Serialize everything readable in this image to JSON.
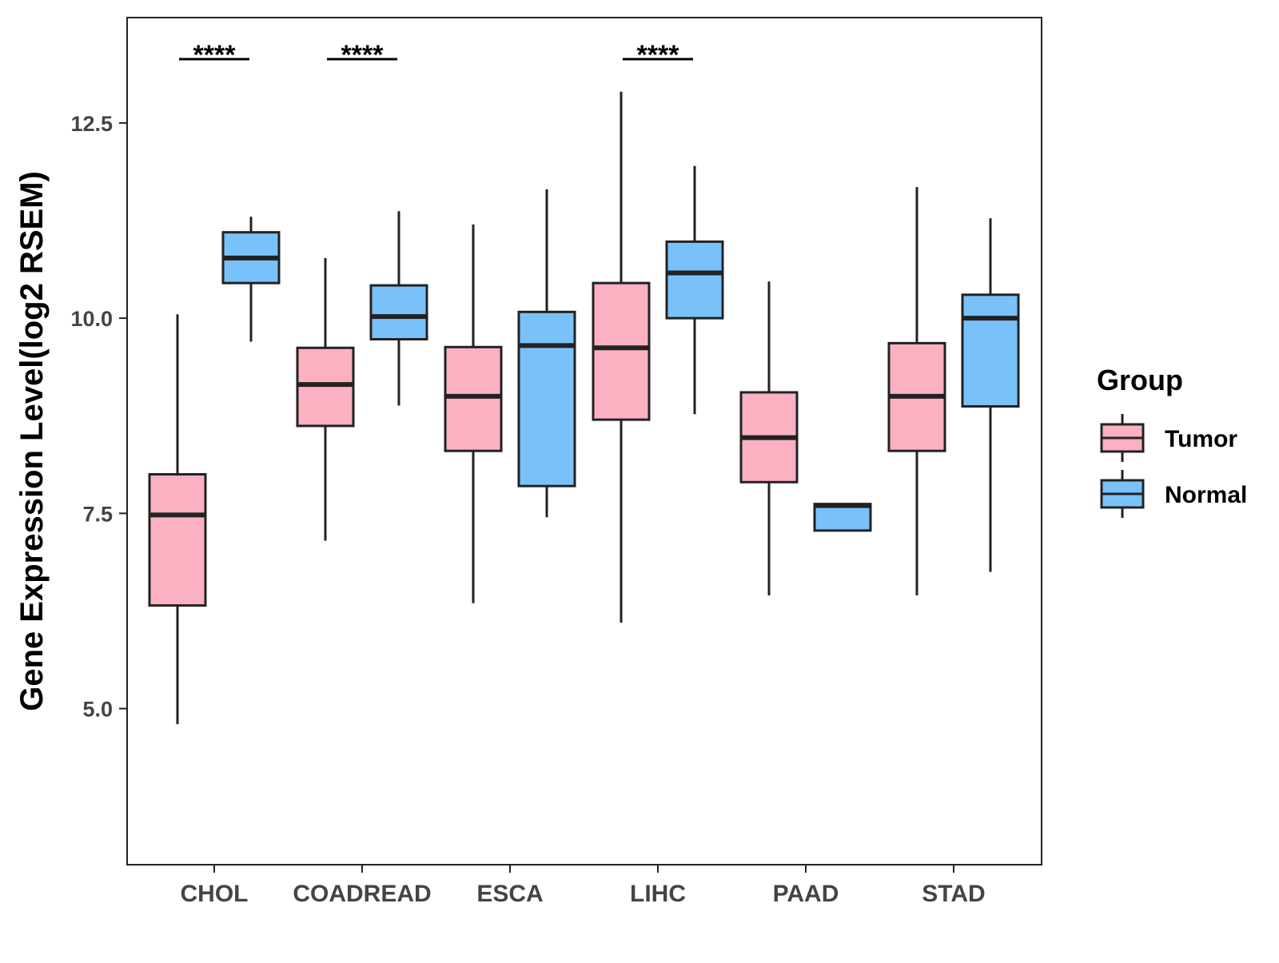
{
  "chart_data": {
    "type": "boxplot",
    "title": "",
    "xlabel": "",
    "ylabel": "Gene Expression Level(log2 RSEM)",
    "ylim": [
      3.0,
      13.85
    ],
    "yticks": [
      5.0,
      7.5,
      10.0,
      12.5
    ],
    "ytick_labels": [
      "5.0",
      "7.5",
      "10.0",
      "12.5"
    ],
    "grid": false,
    "legend": {
      "title": "Group",
      "placement": "right",
      "entries": [
        "Tumor",
        "Normal"
      ]
    },
    "colors": {
      "Tumor": "#FBB1C2",
      "Normal": "#79C2F9",
      "outline": "#222222"
    },
    "categories": [
      "CHOL",
      "COADREAD",
      "ESCA",
      "LIHC",
      "PAAD",
      "STAD"
    ],
    "series": [
      {
        "name": "Tumor",
        "boxes": [
          {
            "whisker_low": 4.8,
            "q1": 6.32,
            "median": 7.48,
            "q3": 8.0,
            "whisker_high": 10.05
          },
          {
            "whisker_low": 7.15,
            "q1": 8.62,
            "median": 9.15,
            "q3": 9.62,
            "whisker_high": 10.77
          },
          {
            "whisker_low": 6.35,
            "q1": 8.3,
            "median": 9.0,
            "q3": 9.63,
            "whisker_high": 11.2
          },
          {
            "whisker_low": 6.1,
            "q1": 8.7,
            "median": 9.62,
            "q3": 10.45,
            "whisker_high": 12.9
          },
          {
            "whisker_low": 6.45,
            "q1": 7.9,
            "median": 8.47,
            "q3": 9.05,
            "whisker_high": 10.47
          },
          {
            "whisker_low": 6.45,
            "q1": 8.3,
            "median": 9.0,
            "q3": 9.68,
            "whisker_high": 11.68
          }
        ]
      },
      {
        "name": "Normal",
        "boxes": [
          {
            "whisker_low": 9.7,
            "q1": 10.45,
            "median": 10.77,
            "q3": 11.1,
            "whisker_high": 11.3
          },
          {
            "whisker_low": 8.88,
            "q1": 9.73,
            "median": 10.02,
            "q3": 10.42,
            "whisker_high": 11.37
          },
          {
            "whisker_low": 7.45,
            "q1": 7.85,
            "median": 9.65,
            "q3": 10.08,
            "whisker_high": 11.65
          },
          {
            "whisker_low": 8.77,
            "q1": 10.0,
            "median": 10.58,
            "q3": 10.98,
            "whisker_high": 11.95
          },
          {
            "whisker_low": 7.28,
            "q1": 7.28,
            "median": 7.6,
            "q3": 7.62,
            "whisker_high": 7.63
          },
          {
            "whisker_low": 6.75,
            "q1": 8.87,
            "median": 10.0,
            "q3": 10.3,
            "whisker_high": 11.28
          }
        ]
      }
    ],
    "significance": [
      {
        "category": "CHOL",
        "label": "****"
      },
      {
        "category": "COADREAD",
        "label": "****"
      },
      {
        "category": "LIHC",
        "label": "****"
      }
    ]
  }
}
